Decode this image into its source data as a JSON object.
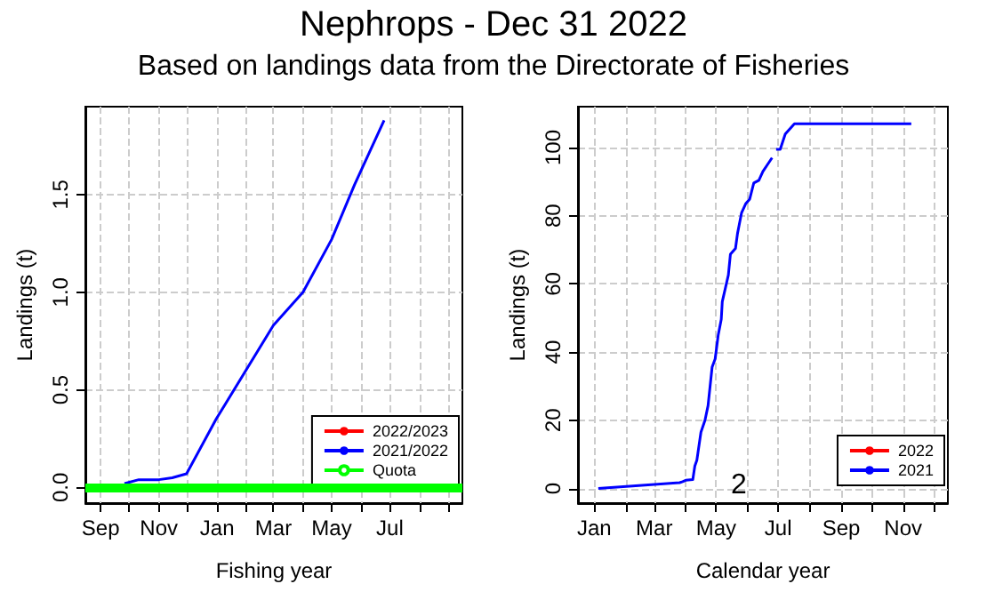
{
  "chart_data": [
    {
      "type": "line",
      "title": "Nephrops - Dec 31 2022",
      "subtitle": "Based on landings data from the Directorate of Fisheries",
      "xlabel": "Fishing year",
      "ylabel": "Landings (t)",
      "xlim": [
        "2021-08-16",
        "2022-09-15"
      ],
      "xticks": [
        {
          "value": "2021-09-01",
          "label": "Sep"
        },
        {
          "value": "2021-10-01",
          "label": null
        },
        {
          "value": "2021-11-01",
          "label": "Nov"
        },
        {
          "value": "2021-12-01",
          "label": null
        },
        {
          "value": "2022-01-01",
          "label": "Jan"
        },
        {
          "value": "2022-02-01",
          "label": null
        },
        {
          "value": "2022-03-01",
          "label": "Mar"
        },
        {
          "value": "2022-04-01",
          "label": null
        },
        {
          "value": "2022-05-01",
          "label": "May"
        },
        {
          "value": "2022-06-01",
          "label": null
        },
        {
          "value": "2022-07-01",
          "label": "Jul"
        },
        {
          "value": "2022-08-01",
          "label": null
        },
        {
          "value": "2022-09-01",
          "label": null
        }
      ],
      "ylim": [
        -0.08,
        1.95
      ],
      "yticks": [
        {
          "value": 0,
          "label": "0.0"
        },
        {
          "value": 0.5,
          "label": "0.5"
        },
        {
          "value": 1,
          "label": "1.0"
        },
        {
          "value": 1.5,
          "label": "1.5"
        }
      ],
      "series": [
        {
          "name": "2022/2023",
          "color": "#ff0000"
        },
        {
          "name": "2021/2022",
          "color": "#0000ff",
          "x": [
            "2021-09-26",
            "2021-10-11",
            "2021-11-01",
            "2021-11-15",
            "2021-11-30",
            "2021-12-31",
            "2022-03-01",
            "2022-04-01",
            "2022-05-01",
            "2022-05-25",
            "2022-06-25"
          ],
          "values": [
            0.02,
            0.04,
            0.04,
            0.05,
            0.07,
            0.35,
            0.83,
            1.0,
            1.27,
            1.55,
            1.88
          ]
        }
      ],
      "ref_lines": [
        {
          "axis": "y",
          "value": 0,
          "label": "Quota",
          "color": "#00ff00"
        }
      ],
      "grid": true,
      "legend": "bottom right"
    },
    {
      "type": "line",
      "xlabel": "Calendar year",
      "ylabel": "Landings (t)",
      "xlim": [
        "2020-12-16",
        "2021-12-15"
      ],
      "xticks": [
        {
          "value": "2021-01-01",
          "label": "Jan"
        },
        {
          "value": "2021-02-01",
          "label": null
        },
        {
          "value": "2021-03-01",
          "label": "Mar"
        },
        {
          "value": "2021-04-01",
          "label": null
        },
        {
          "value": "2021-05-01",
          "label": "May"
        },
        {
          "value": "2021-06-01",
          "label": null
        },
        {
          "value": "2021-07-01",
          "label": "Jul"
        },
        {
          "value": "2021-08-01",
          "label": null
        },
        {
          "value": "2021-09-01",
          "label": "Sep"
        },
        {
          "value": "2021-10-01",
          "label": null
        },
        {
          "value": "2021-11-01",
          "label": "Nov"
        },
        {
          "value": "2021-12-01",
          "label": null
        }
      ],
      "ylim": [
        -4.3,
        112
      ],
      "yticks": [
        0,
        20,
        40,
        60,
        80,
        100
      ],
      "series": [
        {
          "name": "2022",
          "color": "#ff0000"
        },
        {
          "name": "2021",
          "color": "#0000ff",
          "x": [
            "2021-01-05",
            "2021-03-26",
            "2021-03-29",
            "2021-04-01",
            "2021-04-08",
            "2021-04-10",
            "2021-04-12",
            "2021-04-16",
            "2021-04-20",
            "2021-04-23",
            "2021-04-27",
            "2021-04-30",
            "2021-05-03",
            "2021-05-06",
            "2021-05-07",
            "2021-05-11",
            "2021-05-13",
            "2021-05-15",
            "2021-05-20",
            "2021-05-22",
            "2021-05-26",
            "2021-05-30",
            "2021-06-03",
            "2021-06-07",
            "2021-06-12",
            "2021-06-16",
            "2021-06-20",
            "2021-06-25",
            "2021-06-27",
            "2021-06-29",
            "2021-07-03",
            "2021-07-08",
            "2021-07-17",
            "2021-11-09"
          ],
          "values": [
            0,
            1.7,
            2,
            2.4,
            2.6,
            6.6,
            8.3,
            16.5,
            20,
            24.3,
            35.6,
            38,
            45,
            49.6,
            54.8,
            60,
            62.6,
            68.7,
            70.4,
            74.8,
            80.9,
            83.5,
            84.9,
            89.6,
            90.4,
            93,
            94.8,
            97,
            null,
            99.5,
            99.5,
            104,
            107,
            107
          ]
        }
      ],
      "annotations": [
        "2"
      ],
      "grid": true,
      "legend": "bottom right"
    }
  ]
}
